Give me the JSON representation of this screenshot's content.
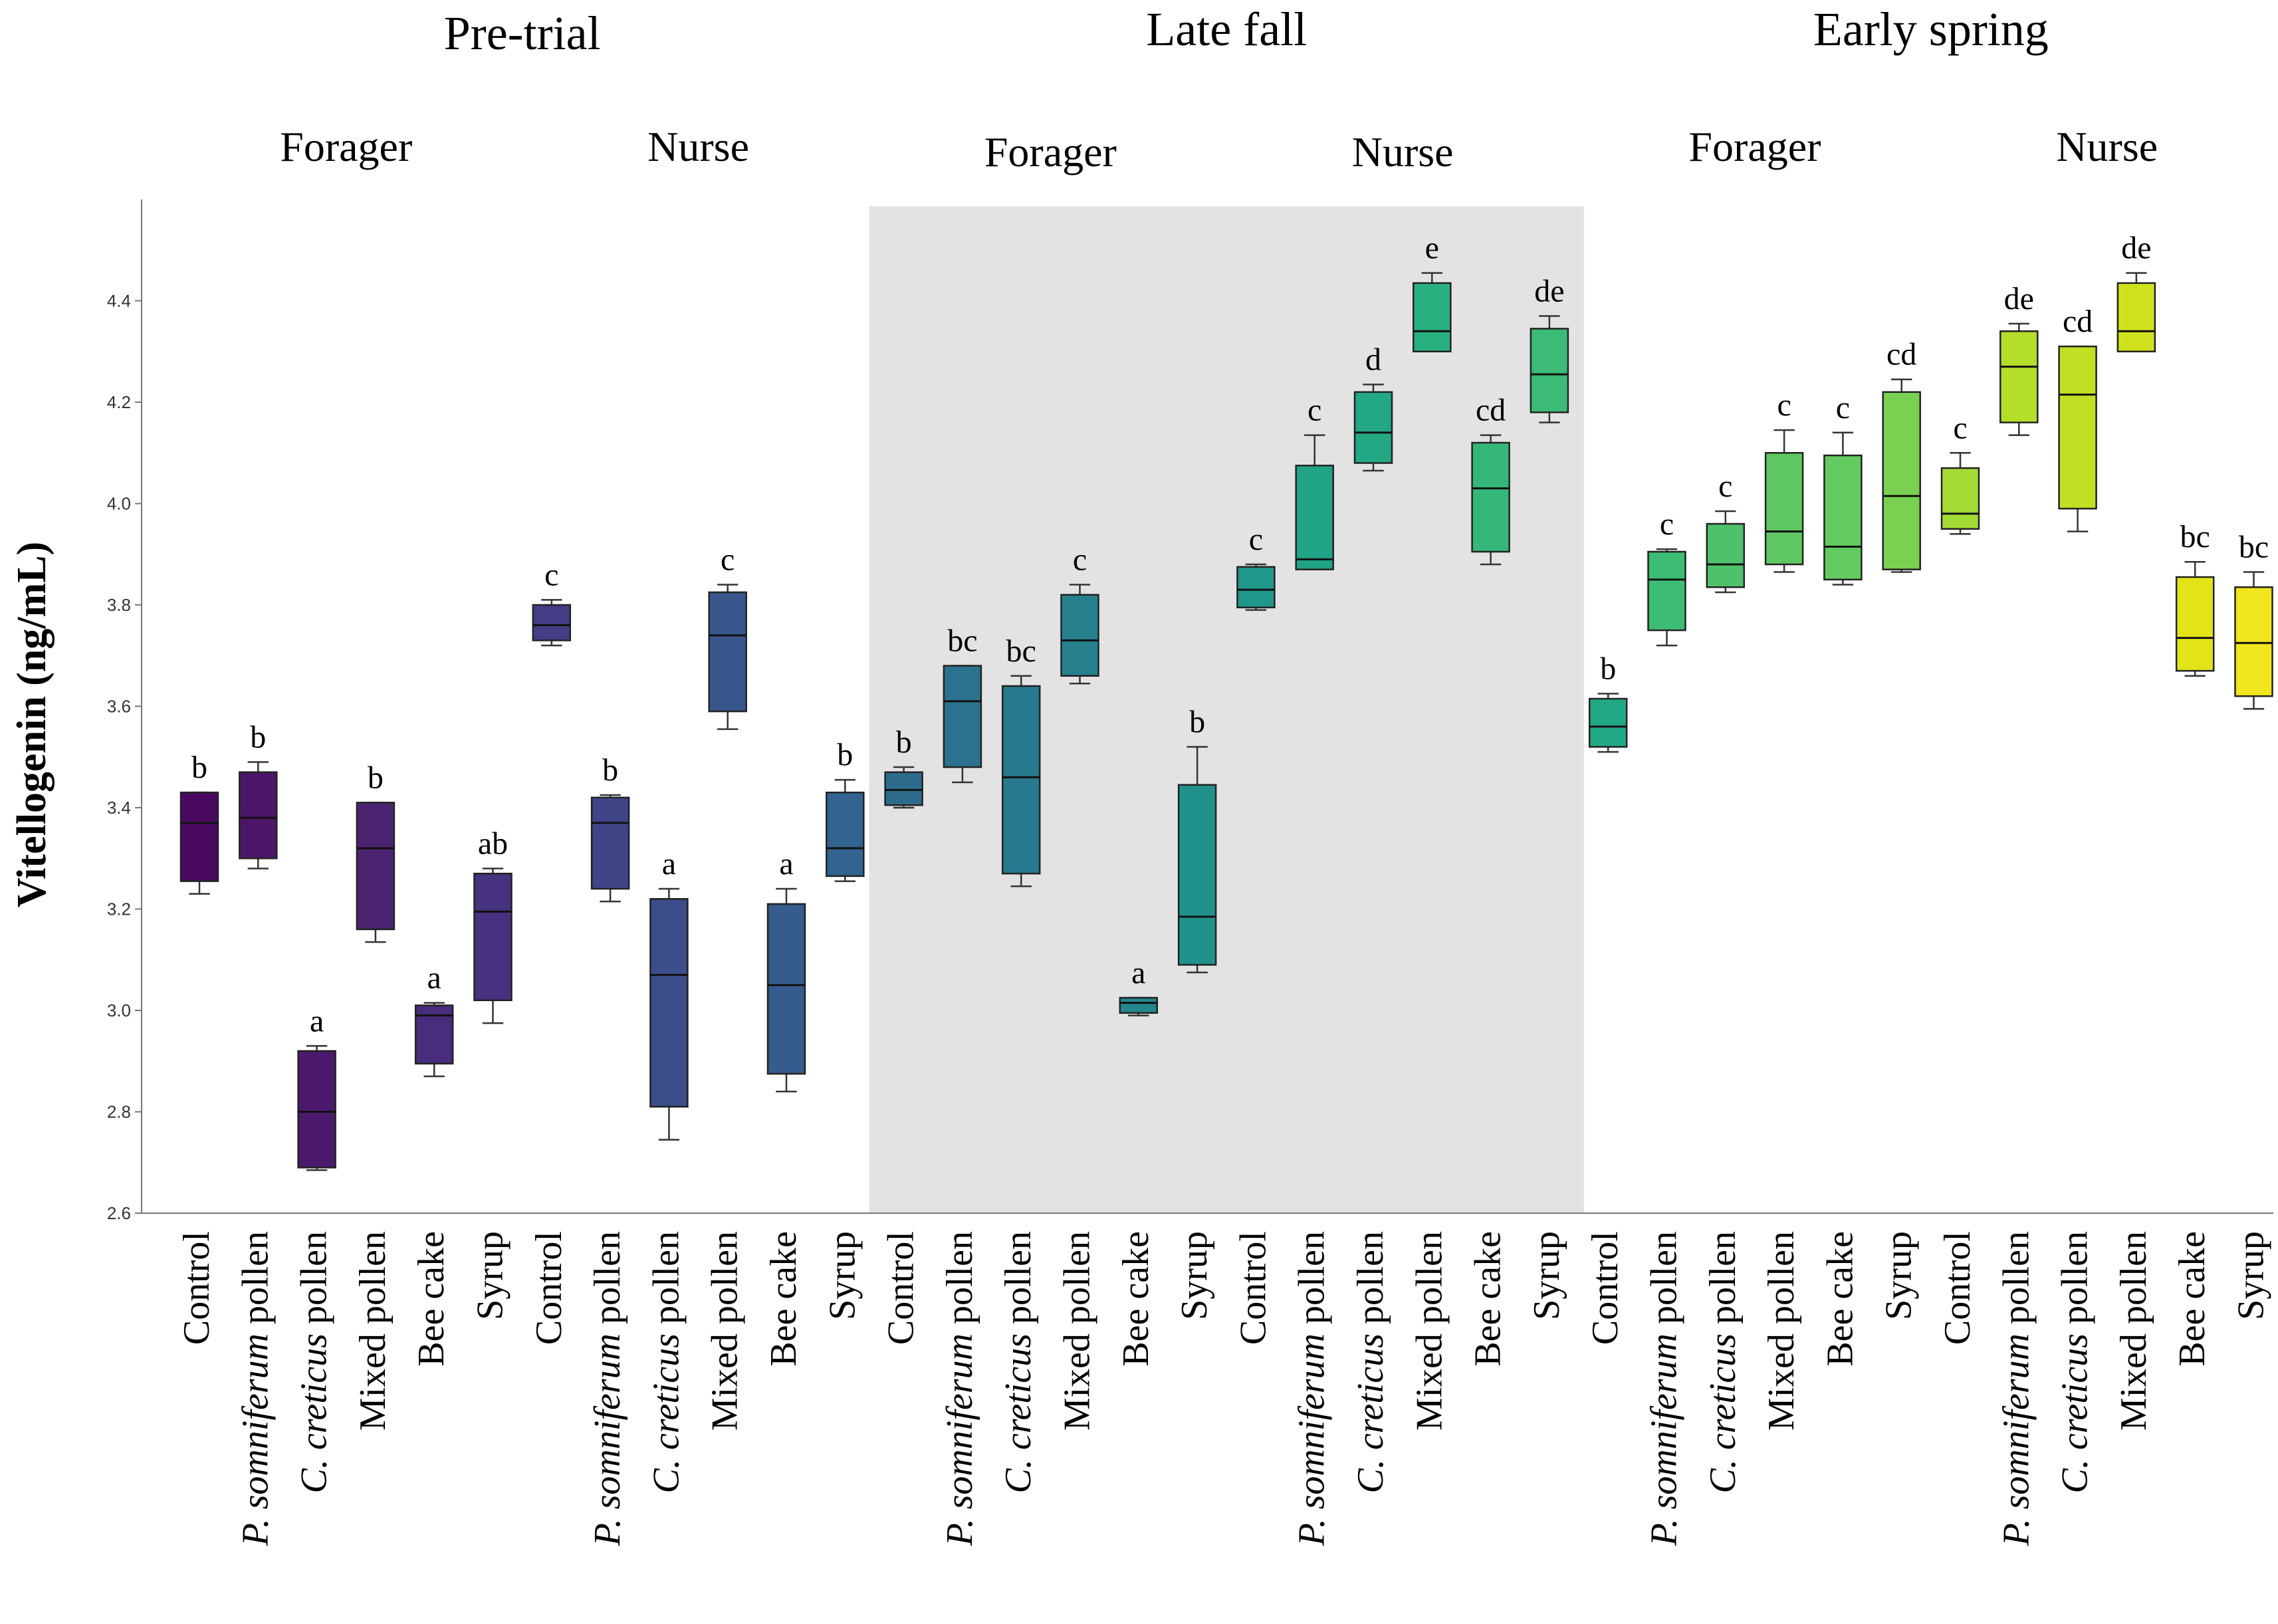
{
  "chart_data": {
    "type": "box",
    "title": "",
    "ylabel": "Vitellogenin (ng/mL)",
    "xlabel": "",
    "ylim": [
      2.6,
      4.55
    ],
    "yticks": [
      "2.6",
      "2.8",
      "3.0",
      "3.2",
      "3.4",
      "3.6",
      "3.8",
      "4.0",
      "4.2",
      "4.4"
    ],
    "yticks_values": [
      2.6,
      2.8,
      3.0,
      3.2,
      3.4,
      3.6,
      3.8,
      4.0,
      4.2,
      4.4
    ],
    "shaded_period": "Late fall",
    "periods": [
      {
        "name": "Pre-trial",
        "groups": [
          {
            "name": "Forager",
            "boxes": [
              {
                "treatment": "Control",
                "min": 3.23,
                "q1": 3.255,
                "median": 3.37,
                "q3": 3.43,
                "max": 3.43,
                "letter": "b",
                "color": "#4a0a61"
              },
              {
                "treatment": "P. somniferum pollen",
                "min": 3.28,
                "q1": 3.3,
                "median": 3.38,
                "q3": 3.47,
                "max": 3.49,
                "letter": "b",
                "color": "#4c1568"
              },
              {
                "treatment": "C. creticus pollen",
                "min": 2.685,
                "q1": 2.69,
                "median": 2.8,
                "q3": 2.92,
                "max": 2.93,
                "letter": "a",
                "color": "#4c1a6c"
              },
              {
                "treatment": "Mixed pollen",
                "min": 3.135,
                "q1": 3.16,
                "median": 3.32,
                "q3": 3.41,
                "max": 3.41,
                "letter": "b",
                "color": "#4d2471"
              },
              {
                "treatment": "Bee cake",
                "min": 2.87,
                "q1": 2.895,
                "median": 2.99,
                "q3": 3.01,
                "max": 3.015,
                "letter": "a",
                "color": "#472d7b"
              },
              {
                "treatment": "Syrup",
                "min": 2.975,
                "q1": 3.02,
                "median": 3.195,
                "q3": 3.27,
                "max": 3.28,
                "letter": "ab",
                "color": "#46327e"
              }
            ]
          },
          {
            "name": "Nurse",
            "boxes": [
              {
                "treatment": "Control",
                "min": 3.72,
                "q1": 3.73,
                "median": 3.76,
                "q3": 3.8,
                "max": 3.81,
                "letter": "c",
                "color": "#433e85"
              },
              {
                "treatment": "P. somniferum pollen",
                "min": 3.215,
                "q1": 3.24,
                "median": 3.37,
                "q3": 3.42,
                "max": 3.425,
                "letter": "b",
                "color": "#404588"
              },
              {
                "treatment": "C. creticus pollen",
                "min": 2.745,
                "q1": 2.81,
                "median": 3.07,
                "q3": 3.22,
                "max": 3.24,
                "letter": "a",
                "color": "#3b4d8a"
              },
              {
                "treatment": "Mixed pollen",
                "min": 3.555,
                "q1": 3.59,
                "median": 3.74,
                "q3": 3.825,
                "max": 3.84,
                "letter": "c",
                "color": "#38568c"
              },
              {
                "treatment": "Bee cake",
                "min": 2.84,
                "q1": 2.875,
                "median": 3.05,
                "q3": 3.21,
                "max": 3.24,
                "letter": "a",
                "color": "#355c8d"
              },
              {
                "treatment": "Syrup",
                "min": 3.255,
                "q1": 3.265,
                "median": 3.32,
                "q3": 3.43,
                "max": 3.455,
                "letter": "b",
                "color": "#31648e"
              }
            ]
          }
        ]
      },
      {
        "name": "Late fall",
        "groups": [
          {
            "name": "Forager",
            "boxes": [
              {
                "treatment": "Control",
                "min": 3.4,
                "q1": 3.405,
                "median": 3.435,
                "q3": 3.47,
                "max": 3.48,
                "letter": "b",
                "color": "#2e6c8e"
              },
              {
                "treatment": "P. somniferum pollen",
                "min": 3.45,
                "q1": 3.48,
                "median": 3.61,
                "q3": 3.68,
                "max": 3.68,
                "letter": "bc",
                "color": "#2c728e"
              },
              {
                "treatment": "C. creticus pollen",
                "min": 3.245,
                "q1": 3.27,
                "median": 3.46,
                "q3": 3.64,
                "max": 3.66,
                "letter": "bc",
                "color": "#29798e"
              },
              {
                "treatment": "Mixed pollen",
                "min": 3.645,
                "q1": 3.66,
                "median": 3.73,
                "q3": 3.82,
                "max": 3.84,
                "letter": "c",
                "color": "#26808e"
              },
              {
                "treatment": "Bee cake",
                "min": 2.99,
                "q1": 2.995,
                "median": 3.015,
                "q3": 3.025,
                "max": 3.025,
                "letter": "a",
                "color": "#23878d"
              },
              {
                "treatment": "Syrup",
                "min": 3.075,
                "q1": 3.09,
                "median": 3.185,
                "q3": 3.445,
                "max": 3.52,
                "letter": "b",
                "color": "#21918c"
              }
            ]
          },
          {
            "name": "Nurse",
            "boxes": [
              {
                "treatment": "Control",
                "min": 3.79,
                "q1": 3.795,
                "median": 3.83,
                "q3": 3.875,
                "max": 3.88,
                "letter": "c",
                "color": "#1f988b"
              },
              {
                "treatment": "P. somniferum pollen",
                "min": 3.87,
                "q1": 3.87,
                "median": 3.89,
                "q3": 4.075,
                "max": 4.135,
                "letter": "c",
                "color": "#20a386"
              },
              {
                "treatment": "C. creticus pollen",
                "min": 4.065,
                "q1": 4.08,
                "median": 4.14,
                "q3": 4.22,
                "max": 4.235,
                "letter": "d",
                "color": "#22a884"
              },
              {
                "treatment": "Mixed pollen",
                "min": 4.3,
                "q1": 4.3,
                "median": 4.34,
                "q3": 4.435,
                "max": 4.455,
                "letter": "e",
                "color": "#2ab07f"
              },
              {
                "treatment": "Bee cake",
                "min": 3.88,
                "q1": 3.905,
                "median": 4.03,
                "q3": 4.12,
                "max": 4.135,
                "letter": "cd",
                "color": "#35b779"
              },
              {
                "treatment": "Syrup",
                "min": 4.16,
                "q1": 4.18,
                "median": 4.255,
                "q3": 4.345,
                "max": 4.37,
                "letter": "de",
                "color": "#3bbb75"
              }
            ]
          }
        ]
      },
      {
        "name": "Early spring",
        "groups": [
          {
            "name": "Forager",
            "boxes": [
              {
                "treatment": "Control",
                "min": 3.51,
                "q1": 3.52,
                "median": 3.56,
                "q3": 3.615,
                "max": 3.625,
                "letter": "b",
                "color": "#22a884"
              },
              {
                "treatment": "P. somniferum pollen",
                "min": 3.72,
                "q1": 3.75,
                "median": 3.85,
                "q3": 3.905,
                "max": 3.91,
                "letter": "c",
                "color": "#3dbc74"
              },
              {
                "treatment": "C. creticus pollen",
                "min": 3.825,
                "q1": 3.835,
                "median": 3.88,
                "q3": 3.96,
                "max": 3.985,
                "letter": "c",
                "color": "#4fc16a"
              },
              {
                "treatment": "Mixed pollen",
                "min": 3.865,
                "q1": 3.88,
                "median": 3.945,
                "q3": 4.1,
                "max": 4.145,
                "letter": "c",
                "color": "#5ec962"
              },
              {
                "treatment": "Bee cake",
                "min": 3.84,
                "q1": 3.85,
                "median": 3.915,
                "q3": 4.095,
                "max": 4.14,
                "letter": "c",
                "color": "#63cb5f"
              },
              {
                "treatment": "Syrup",
                "min": 3.865,
                "q1": 3.87,
                "median": 4.015,
                "q3": 4.22,
                "max": 4.245,
                "letter": "cd",
                "color": "#7ad151"
              }
            ]
          },
          {
            "name": "Nurse",
            "boxes": [
              {
                "treatment": "Control",
                "min": 3.94,
                "q1": 3.95,
                "median": 3.98,
                "q3": 4.07,
                "max": 4.1,
                "letter": "c",
                "color": "#a5db36"
              },
              {
                "treatment": "P. somniferum pollen",
                "min": 4.135,
                "q1": 4.16,
                "median": 4.27,
                "q3": 4.34,
                "max": 4.355,
                "letter": "de",
                "color": "#b5de2b"
              },
              {
                "treatment": "C. creticus pollen",
                "min": 3.945,
                "q1": 3.99,
                "median": 4.215,
                "q3": 4.31,
                "max": 4.31,
                "letter": "cd",
                "color": "#c2df23"
              },
              {
                "treatment": "Mixed pollen",
                "min": 4.3,
                "q1": 4.3,
                "median": 4.34,
                "q3": 4.435,
                "max": 4.455,
                "letter": "de",
                "color": "#cfe11c"
              },
              {
                "treatment": "Bee cake",
                "min": 3.66,
                "q1": 3.67,
                "median": 3.735,
                "q3": 3.855,
                "max": 3.885,
                "letter": "bc",
                "color": "#e2e418"
              },
              {
                "treatment": "Syrup",
                "min": 3.595,
                "q1": 3.62,
                "median": 3.725,
                "q3": 3.835,
                "max": 3.865,
                "letter": "bc",
                "color": "#f1e51d"
              }
            ]
          }
        ]
      }
    ]
  }
}
